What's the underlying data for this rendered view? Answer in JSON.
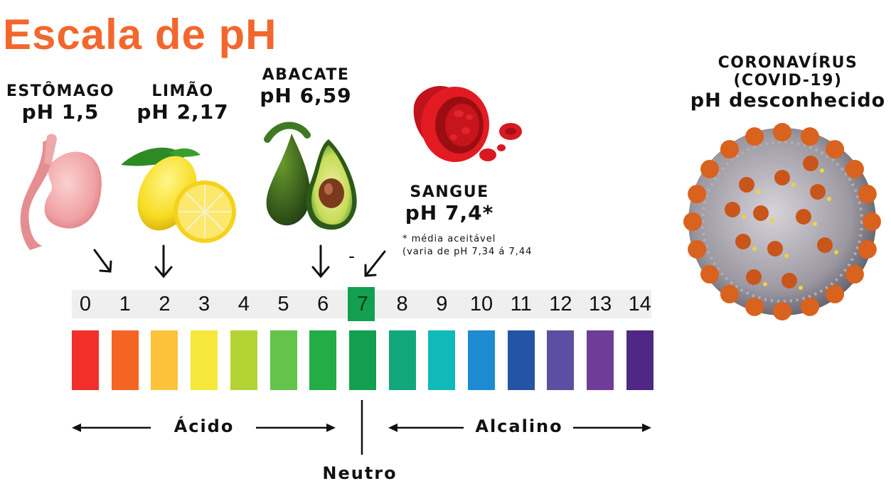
{
  "title": "Escala de pH",
  "items": {
    "stomach": {
      "name": "ESTÔMAGO",
      "ph": "pH 1,5"
    },
    "lemon": {
      "name": "LIMÃO",
      "ph": "pH 2,17"
    },
    "avocado": {
      "name": "ABACATE",
      "ph": "pH 6,59"
    },
    "blood": {
      "name": "SANGUE",
      "ph": "pH 7,4*"
    },
    "virus": {
      "name": "CORONAVÍRUS",
      "sub": "(COVID-19)",
      "ph": "pH desconhecido"
    }
  },
  "note": {
    "line1": "* média aceitável",
    "line2": "(varia de pH 7,34 á 7,44"
  },
  "scale": {
    "numbers": [
      "0",
      "1",
      "2",
      "3",
      "4",
      "5",
      "6",
      "7",
      "8",
      "9",
      "10",
      "11",
      "12",
      "13",
      "14"
    ],
    "colors": [
      "#f1302a",
      "#f66424",
      "#fcc239",
      "#f5e73b",
      "#b3d334",
      "#63c34a",
      "#24ad47",
      "#12a050",
      "#12a77a",
      "#0fbab8",
      "#1c8bd1",
      "#2355a4",
      "#5c4fa2",
      "#6f3d99",
      "#4f2786"
    ]
  },
  "labels": {
    "acid": "Ácido",
    "alkaline": "Alcalino",
    "neutral": "Neutro"
  },
  "icons": [
    "stomach-illustration",
    "lemon-illustration",
    "avocado-illustration",
    "blood-vessel-illustration",
    "coronavirus-illustration",
    "arrow-down-icon"
  ]
}
